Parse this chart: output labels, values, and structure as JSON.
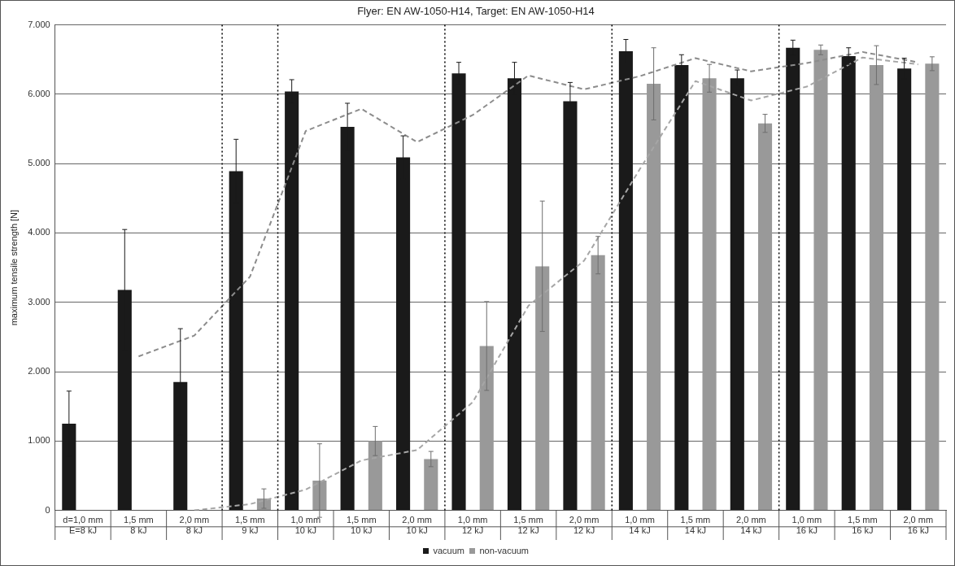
{
  "chart_data": {
    "type": "bar",
    "title": "Flyer: EN AW-1050-H14, Target: EN AW-1050-H14",
    "ylabel": "maximum tensile strength [N]",
    "categories": [
      "d=1,0 mm\nE=8 kJ",
      "1,5 mm\n8 kJ",
      "2,0 mm\n8 kJ",
      "1,5 mm\n9 kJ",
      "1,0 mm\n10 kJ",
      "1,5 mm\n10 kJ",
      "2,0 mm\n10 kJ",
      "1,0 mm\n12 kJ",
      "1,5 mm\n12 kJ",
      "2,0 mm\n12 kJ",
      "1,0 mm\n14 kJ",
      "1,5 mm\n14 kJ",
      "2,0 mm\n14 kJ",
      "1,0 mm\n16 kJ",
      "1,5 mm\n16 kJ",
      "2,0 mm\n16 kJ"
    ],
    "series": [
      {
        "name": "vacuum",
        "color": "#1a1a1a",
        "values": [
          1250,
          3180,
          1850,
          4890,
          6040,
          5530,
          5090,
          6300,
          6230,
          5900,
          6620,
          6420,
          6230,
          6670,
          6550,
          6370
        ],
        "errors": [
          470,
          870,
          770,
          460,
          170,
          340,
          310,
          160,
          230,
          270,
          170,
          150,
          120,
          110,
          120,
          150
        ]
      },
      {
        "name": "non-vacuum",
        "color": "#999999",
        "values": [
          null,
          null,
          0,
          170,
          430,
          1000,
          740,
          2370,
          3520,
          3680,
          6150,
          6230,
          5580,
          6640,
          6420,
          6440
        ],
        "errors": [
          null,
          null,
          null,
          140,
          530,
          210,
          110,
          640,
          940,
          270,
          520,
          200,
          130,
          70,
          280,
          100
        ]
      },
      {
        "type": "line",
        "color": "#8c8c8c",
        "line_style": "dashed",
        "marker": "none",
        "values": [
          null,
          2220,
          2520,
          3370,
          5470,
          5790,
          5310,
          5700,
          6270,
          6070,
          6260,
          6520,
          6330,
          6450,
          6610,
          6460
        ]
      },
      {
        "type": "line",
        "color": "#a6a6a6",
        "line_style": "dashed",
        "marker": "none",
        "values": [
          null,
          null,
          0,
          90,
          300,
          720,
          870,
          1560,
          2950,
          3600,
          4920,
          6190,
          5910,
          6110,
          6530,
          6430
        ]
      }
    ],
    "ylim": [
      0,
      7000
    ],
    "yticks": [
      0,
      {
        "value": 1000,
        "label": "1.000"
      },
      {
        "value": 2000,
        "label": "2.000"
      },
      {
        "value": 3000,
        "label": "3.000"
      },
      {
        "value": 4000,
        "label": "4.000"
      },
      {
        "value": 5000,
        "label": "5.000"
      },
      {
        "value": 6000,
        "label": "6.000"
      },
      {
        "value": 7000,
        "label": "7.000"
      }
    ],
    "grid": "y",
    "legend": "bottom"
  }
}
